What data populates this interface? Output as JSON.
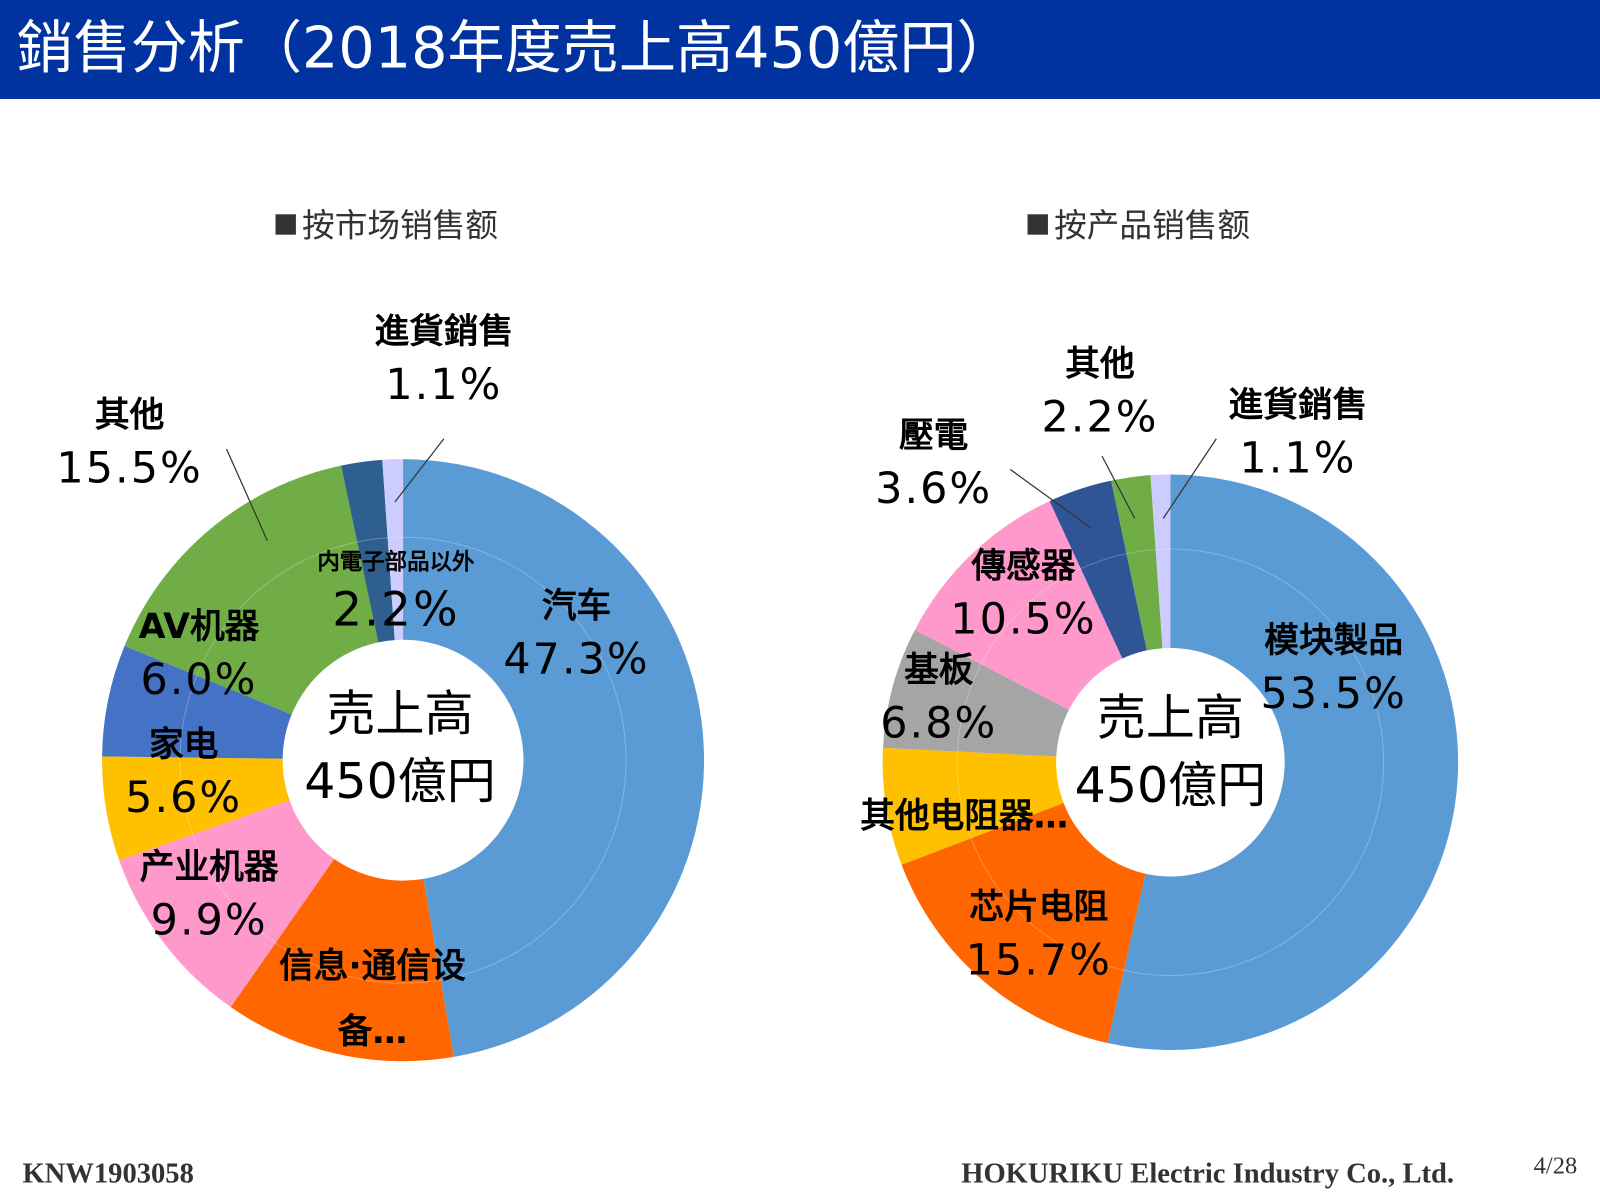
{
  "title": "銷售分析（2018年度売上高450億円）",
  "footer": {
    "doc_id": "KNW1903058",
    "company": "HOKURIKU Electric Industry Co., Ltd.",
    "page": "4/28"
  },
  "chart_data": [
    {
      "type": "pie",
      "variant": "donut",
      "title": "按市场销售额",
      "center_label": [
        "売上高",
        "450億円"
      ],
      "unit": "%",
      "slices": [
        {
          "name": "汽车",
          "value": 47.3,
          "label": "47.3%",
          "color": "#5B9BD5"
        },
        {
          "name": "信息·通信设备…",
          "value": 12.4,
          "label": "",
          "color": "#FF6600"
        },
        {
          "name": "产业机器",
          "value": 9.9,
          "label": "9.9%",
          "color": "#FF99CC"
        },
        {
          "name": "家电",
          "value": 5.6,
          "label": "5.6%",
          "color": "#FFC000"
        },
        {
          "name": "AV机器",
          "value": 6.0,
          "label": "6.0%",
          "color": "#4472C4"
        },
        {
          "name": "其他",
          "value": 15.5,
          "label": "15.5%",
          "color": "#70AD47"
        },
        {
          "name": "内電子部品以外",
          "value": 2.2,
          "label": "2.2%",
          "color": "#2F5F8F"
        },
        {
          "name": "進貨銷售",
          "value": 1.1,
          "label": "1.1%",
          "color": "#CCCCFF"
        }
      ]
    },
    {
      "type": "pie",
      "variant": "donut",
      "title": "按产品销售额",
      "center_label": [
        "売上高",
        "450億円"
      ],
      "unit": "%",
      "slices": [
        {
          "name": "模块製品",
          "value": 53.5,
          "label": "53.5%",
          "color": "#5B9BD5"
        },
        {
          "name": "芯片电阻",
          "value": 15.7,
          "label": "15.7%",
          "color": "#FF6600"
        },
        {
          "name": "其他电阻器…",
          "value": 6.6,
          "label": "",
          "color": "#FFC000"
        },
        {
          "name": "基板",
          "value": 6.8,
          "label": "6.8%",
          "color": "#A5A5A5"
        },
        {
          "name": "傳感器",
          "value": 10.5,
          "label": "10.5%",
          "color": "#FF99CC"
        },
        {
          "name": "壓電",
          "value": 3.6,
          "label": "3.6%",
          "color": "#2F5597"
        },
        {
          "name": "其他",
          "value": 2.2,
          "label": "2.2%",
          "color": "#70AD47"
        },
        {
          "name": "進貨銷售",
          "value": 1.1,
          "label": "1.1%",
          "color": "#CCCCFF"
        }
      ]
    }
  ]
}
